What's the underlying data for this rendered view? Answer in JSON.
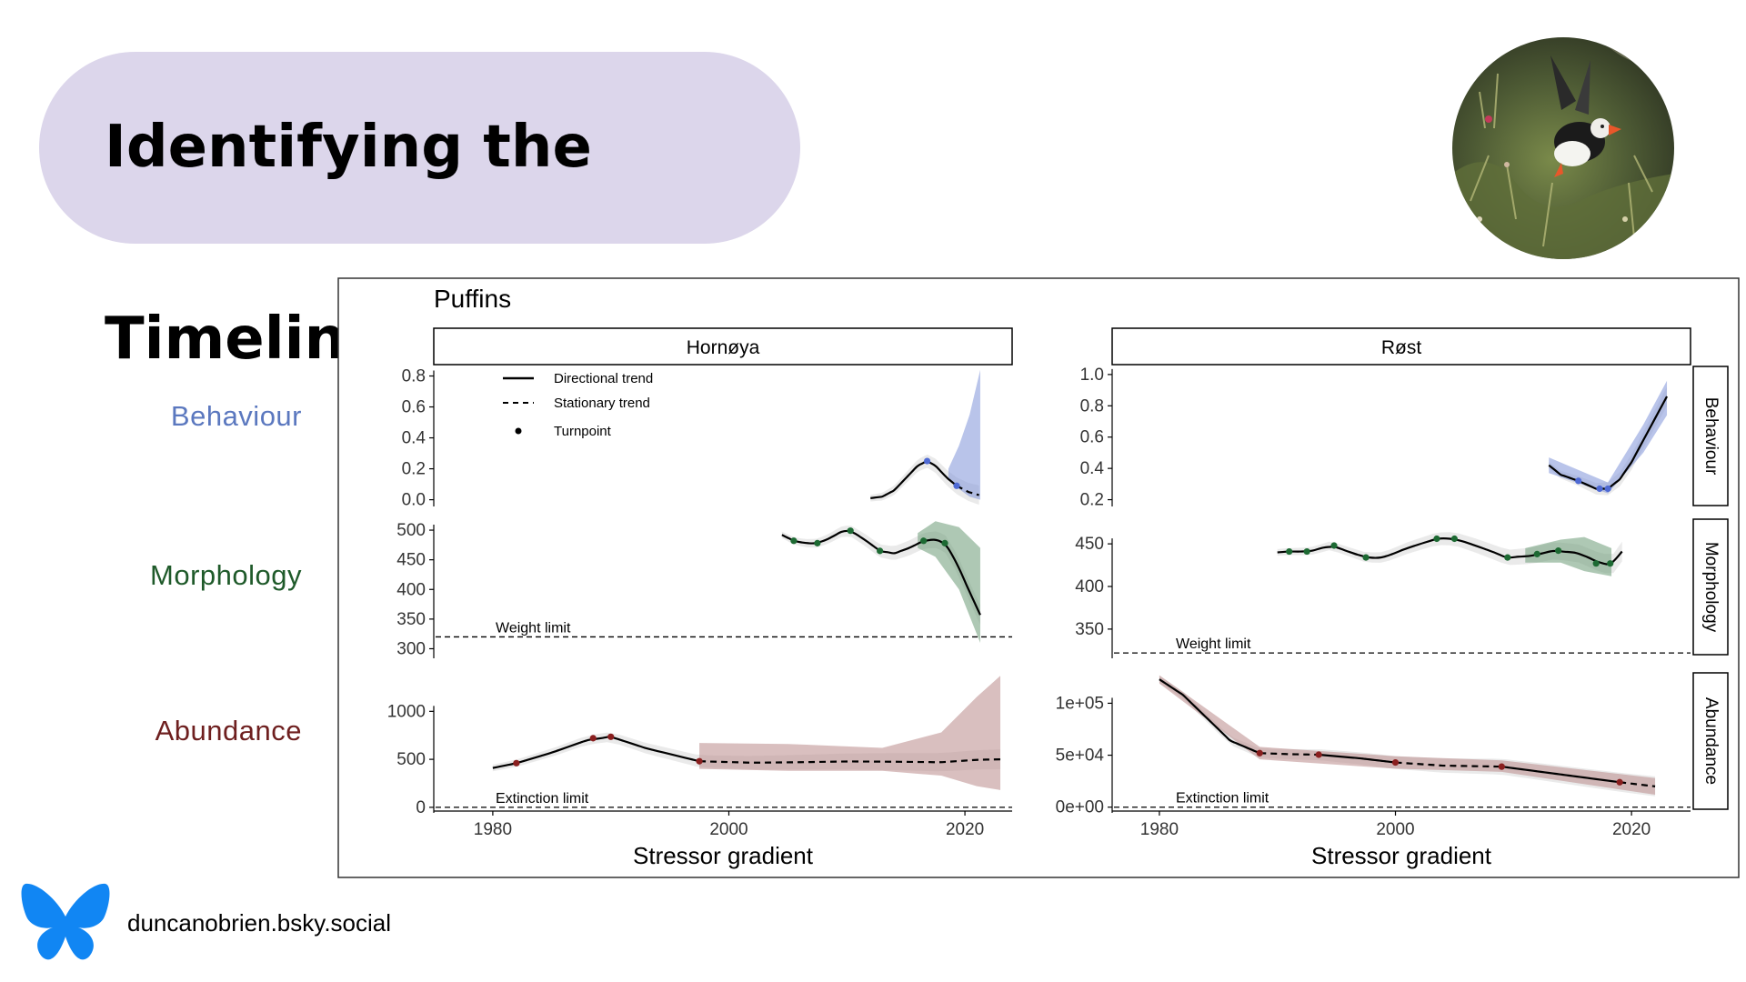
{
  "slide": {
    "title": "Identifying the Timeline",
    "handle": "duncanobrien.bsky.social",
    "accent_pill": "#dcd6eb",
    "row_labels": [
      {
        "text": "Behaviour",
        "color": "#5b78bf"
      },
      {
        "text": "Morphology",
        "color": "#1f5a2a"
      },
      {
        "text": "Abundance",
        "color": "#6e1f1f"
      }
    ],
    "icons": [
      "bluesky-butterfly-icon",
      "puffin-photo"
    ]
  },
  "figure": {
    "title": "Puffins",
    "xlabel": "Stressor gradient",
    "legend": [
      {
        "label": "Directional trend",
        "style": "solid"
      },
      {
        "label": "Stationary trend",
        "style": "dashed"
      },
      {
        "label": "Turnpoint",
        "style": "point"
      }
    ],
    "facets": [
      "Hornøya",
      "Røst"
    ],
    "strip_rows": [
      "Behaviour",
      "Morphology",
      "Abundance"
    ]
  },
  "chart_data": [
    {
      "type": "line",
      "facet": "Hornøya",
      "row": "Behaviour",
      "color": "#8093d9",
      "xlim": [
        1975,
        2024
      ],
      "ylim": [
        -0.02,
        0.85
      ],
      "yticks": [
        0.0,
        0.2,
        0.4,
        0.6,
        0.8
      ],
      "y_tick_labels": [
        "0.0",
        "0.2",
        "0.4",
        "0.6",
        "0.8"
      ],
      "x": [
        2012,
        2013,
        2014,
        2015,
        2016,
        2016.8,
        2017.5,
        2018.5,
        2019.3,
        2020.3,
        2021.2
      ],
      "y": [
        0.01,
        0.02,
        0.06,
        0.14,
        0.22,
        0.25,
        0.22,
        0.14,
        0.09,
        0.05,
        0.03
      ],
      "segments": [
        {
          "from": 2012,
          "to": 2019.3,
          "type": "directional"
        },
        {
          "from": 2019.3,
          "to": 2021.2,
          "type": "stationary"
        }
      ],
      "turnpoints": [
        {
          "x": 2016.8,
          "y": 0.25
        },
        {
          "x": 2019.3,
          "y": 0.09
        }
      ],
      "band": [
        {
          "x": 2018.6,
          "lo": 0.14,
          "hi": 0.2
        },
        {
          "x": 2019.5,
          "lo": 0.07,
          "hi": 0.35
        },
        {
          "x": 2020.4,
          "lo": 0.02,
          "hi": 0.55
        },
        {
          "x": 2021.3,
          "lo": 0.0,
          "hi": 0.84
        }
      ]
    },
    {
      "type": "line",
      "facet": "Hornøya",
      "row": "Morphology",
      "color": "#6b9b77",
      "xlim": [
        1975,
        2024
      ],
      "ylim": [
        290,
        520
      ],
      "yticks": [
        300,
        350,
        400,
        450,
        500
      ],
      "y_tick_labels": [
        "300",
        "350",
        "400",
        "450",
        "500"
      ],
      "reference": {
        "label": "Weight limit",
        "y": 320
      },
      "x": [
        2004.5,
        2005.5,
        2006.5,
        2007.5,
        2008.5,
        2009.5,
        2010.3,
        2011.5,
        2012.8,
        2014,
        2015.3,
        2016.5,
        2017.5,
        2018.3,
        2019.3,
        2020.3,
        2021.3
      ],
      "y": [
        492,
        482,
        478,
        478,
        486,
        497,
        499,
        484,
        465,
        461,
        470,
        482,
        484,
        478,
        445,
        400,
        357
      ],
      "turnpoints": [
        {
          "x": 2005.5,
          "y": 482
        },
        {
          "x": 2007.5,
          "y": 478
        },
        {
          "x": 2010.3,
          "y": 499
        },
        {
          "x": 2012.8,
          "y": 465
        },
        {
          "x": 2016.5,
          "y": 482
        },
        {
          "x": 2018.3,
          "y": 478
        }
      ],
      "band": [
        {
          "x": 2016,
          "lo": 470,
          "hi": 495
        },
        {
          "x": 2017.5,
          "lo": 455,
          "hi": 515
        },
        {
          "x": 2019.5,
          "lo": 400,
          "hi": 505
        },
        {
          "x": 2021.3,
          "lo": 310,
          "hi": 470
        }
      ]
    },
    {
      "type": "line",
      "facet": "Hornøya",
      "row": "Abundance",
      "color": "#b98a8a",
      "xlim": [
        1975,
        2024
      ],
      "ylim": [
        -20,
        1420
      ],
      "yticks": [
        0,
        500,
        1000
      ],
      "y_tick_labels": [
        "0",
        "500",
        "1000"
      ],
      "reference": {
        "label": "Extinction limit",
        "y": 0
      },
      "x": [
        1980,
        1982,
        1985,
        1988,
        1990,
        1993,
        1997.5,
        2002,
        2006,
        2010,
        2014,
        2018,
        2021,
        2023
      ],
      "y": [
        410,
        460,
        570,
        700,
        735,
        615,
        480,
        465,
        470,
        478,
        475,
        470,
        495,
        500
      ],
      "segments": [
        {
          "from": 1980,
          "to": 1997.5,
          "type": "directional"
        },
        {
          "from": 1997.5,
          "to": 2023,
          "type": "stationary"
        }
      ],
      "turnpoints": [
        {
          "x": 1982,
          "y": 460
        },
        {
          "x": 1988.5,
          "y": 720
        },
        {
          "x": 1990,
          "y": 735
        },
        {
          "x": 1997.5,
          "y": 480
        }
      ],
      "band": [
        {
          "x": 1997.5,
          "lo": 400,
          "hi": 670
        },
        {
          "x": 2005,
          "lo": 380,
          "hi": 660
        },
        {
          "x": 2013,
          "lo": 380,
          "hi": 620
        },
        {
          "x": 2018,
          "lo": 330,
          "hi": 780
        },
        {
          "x": 2021,
          "lo": 220,
          "hi": 1150
        },
        {
          "x": 2023,
          "lo": 180,
          "hi": 1370
        }
      ]
    },
    {
      "type": "line",
      "facet": "Røst",
      "row": "Behaviour",
      "color": "#8093d9",
      "xlim": [
        1976,
        2025
      ],
      "ylim": [
        0.18,
        1.04
      ],
      "yticks": [
        0.2,
        0.4,
        0.6,
        0.8,
        1.0
      ],
      "y_tick_labels": [
        "0.2",
        "0.4",
        "0.6",
        "0.8",
        "1.0"
      ],
      "x": [
        2013,
        2014,
        2015.5,
        2017,
        2018,
        2019,
        2020,
        2021,
        2022,
        2023
      ],
      "y": [
        0.42,
        0.36,
        0.32,
        0.27,
        0.27,
        0.33,
        0.44,
        0.58,
        0.72,
        0.86
      ],
      "turnpoints": [
        {
          "x": 2015.5,
          "y": 0.32
        },
        {
          "x": 2017.3,
          "y": 0.27
        },
        {
          "x": 2018,
          "y": 0.27
        }
      ],
      "band": [
        {
          "x": 2013,
          "lo": 0.37,
          "hi": 0.47
        },
        {
          "x": 2018,
          "lo": 0.24,
          "hi": 0.31
        },
        {
          "x": 2021,
          "lo": 0.5,
          "hi": 0.68
        },
        {
          "x": 2023,
          "lo": 0.74,
          "hi": 0.96
        }
      ]
    },
    {
      "type": "line",
      "facet": "Røst",
      "row": "Morphology",
      "color": "#6b9b77",
      "xlim": [
        1976,
        2025
      ],
      "ylim": [
        320,
        480
      ],
      "yticks": [
        350,
        400,
        450
      ],
      "y_tick_labels": [
        "350",
        "400",
        "450"
      ],
      "reference": {
        "label": "Weight limit",
        "y": 322
      },
      "x": [
        1990,
        1991,
        1992,
        1993,
        1994.5,
        1996,
        1997.5,
        1999,
        2001,
        2003.5,
        2005,
        2007,
        2009.5,
        2011.5,
        2013.5,
        2015.5,
        2017.5,
        2018.5,
        2019.2
      ],
      "y": [
        440,
        441,
        441,
        442,
        448,
        441,
        434,
        434,
        445,
        456,
        456,
        447,
        434,
        436,
        442,
        439,
        427,
        427,
        441
      ],
      "turnpoints": [
        {
          "x": 1991,
          "y": 441
        },
        {
          "x": 1992.5,
          "y": 441
        },
        {
          "x": 1994.8,
          "y": 448
        },
        {
          "x": 1997.5,
          "y": 434
        },
        {
          "x": 2003.5,
          "y": 456
        },
        {
          "x": 2005,
          "y": 456
        },
        {
          "x": 2009.5,
          "y": 434
        },
        {
          "x": 2012,
          "y": 438
        },
        {
          "x": 2013.8,
          "y": 442
        },
        {
          "x": 2017,
          "y": 427
        },
        {
          "x": 2018.2,
          "y": 427
        }
      ],
      "band": [
        {
          "x": 2011,
          "lo": 428,
          "hi": 445
        },
        {
          "x": 2014,
          "lo": 428,
          "hi": 455
        },
        {
          "x": 2016,
          "lo": 418,
          "hi": 458
        },
        {
          "x": 2018.3,
          "lo": 412,
          "hi": 445
        }
      ]
    },
    {
      "type": "line",
      "facet": "Røst",
      "row": "Abundance",
      "color": "#b98a8a",
      "xlim": [
        1976,
        2025
      ],
      "ylim": [
        -2000,
        131000
      ],
      "yticks": [
        0,
        50000,
        100000
      ],
      "y_tick_labels": [
        "0e+00",
        "5e+04",
        "1e+05"
      ],
      "reference": {
        "label": "Extinction limit",
        "y": 0
      },
      "x": [
        1980,
        1982,
        1984,
        1986,
        1988.5,
        1991,
        1993.5,
        1997,
        2000,
        2004,
        2009,
        2013,
        2017,
        2019,
        2022
      ],
      "y": [
        123000,
        108000,
        86000,
        64000,
        52000,
        51000,
        50500,
        47000,
        43000,
        40000,
        39000,
        33000,
        27000,
        24000,
        20000
      ],
      "segments": [
        {
          "from": 1980,
          "to": 1988.5,
          "type": "directional"
        },
        {
          "from": 1988.5,
          "to": 1993.5,
          "type": "stationary"
        },
        {
          "from": 1993.5,
          "to": 2000,
          "type": "directional"
        },
        {
          "from": 2000,
          "to": 2009,
          "type": "stationary"
        },
        {
          "from": 2009,
          "to": 2019,
          "type": "directional"
        },
        {
          "from": 2019,
          "to": 2022,
          "type": "stationary"
        }
      ],
      "turnpoints": [
        {
          "x": 1988.5,
          "y": 52000
        },
        {
          "x": 1993.5,
          "y": 50500
        },
        {
          "x": 2000,
          "y": 43000
        },
        {
          "x": 2009,
          "y": 39000
        },
        {
          "x": 2019,
          "y": 24000
        }
      ],
      "band": [
        {
          "x": 1980,
          "lo": 119000,
          "hi": 127000
        },
        {
          "x": 1988.5,
          "lo": 46000,
          "hi": 58000
        },
        {
          "x": 2000,
          "lo": 37000,
          "hi": 49000
        },
        {
          "x": 2009,
          "lo": 34000,
          "hi": 45000
        },
        {
          "x": 2022,
          "lo": 12000,
          "hi": 28000
        }
      ]
    }
  ]
}
